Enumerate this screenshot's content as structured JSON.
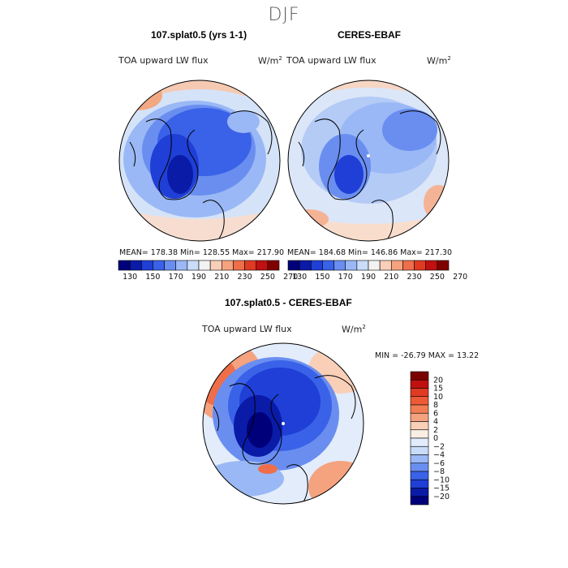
{
  "figure": {
    "season": "DJF",
    "panels": [
      {
        "title": "107.splat0.5 (yrs 1-1)",
        "variable": "TOA upward LW flux",
        "units_base": "W/m",
        "units_exp": "2",
        "stats": "MEAN= 178.38   Min= 128.55   Max= 217.90"
      },
      {
        "title": "CERES-EBAF",
        "variable": "TOA upward LW flux",
        "units_base": "W/m",
        "units_exp": "2",
        "stats": "MEAN= 184.68   Min= 146.86   Max= 217.30"
      },
      {
        "title": "107.splat0.5 - CERES-EBAF",
        "variable": "TOA upward LW flux",
        "units_base": "W/m",
        "units_exp": "2",
        "stats": "MIN = -26.79  MAX =  13.22"
      }
    ],
    "colorbar_abs": {
      "ticks": [
        "130",
        "150",
        "170",
        "190",
        "210",
        "230",
        "250",
        "270"
      ],
      "colors": [
        "#00007a",
        "#0a1ba8",
        "#1f3fd6",
        "#3a62e8",
        "#6a8ef0",
        "#9ab8f5",
        "#c9dcf8",
        "#f2f2f2",
        "#f9cfb8",
        "#f5a27f",
        "#ee6e4a",
        "#e03a22",
        "#c01010",
        "#800000"
      ]
    },
    "colorbar_diff": {
      "ticks": [
        "20",
        "15",
        "10",
        "8",
        "6",
        "4",
        "2",
        "0",
        "−2",
        "−4",
        "−6",
        "−8",
        "−10",
        "−15",
        "−20"
      ],
      "colors": [
        "#7a0000",
        "#c01010",
        "#e03a22",
        "#ee5a36",
        "#f27d55",
        "#f5a27f",
        "#f9cfb8",
        "#fbeee4",
        "#e2ecfb",
        "#c9dcf8",
        "#9ab8f5",
        "#6a8ef0",
        "#3a62e8",
        "#1f3fd6",
        "#0a1ba8",
        "#00007a"
      ]
    }
  }
}
